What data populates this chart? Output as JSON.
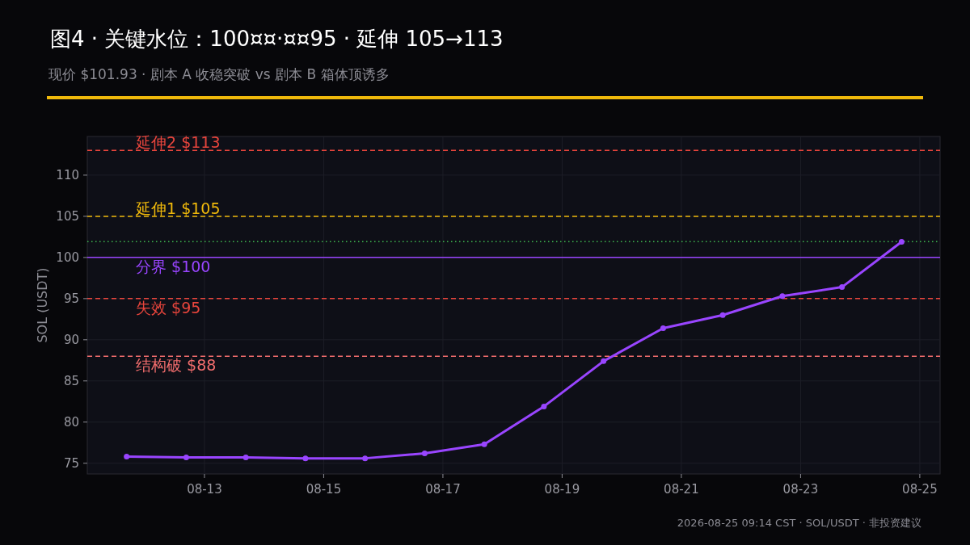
{
  "chart_data": {
    "type": "line",
    "title": "图4 · 关键水位：100¤¤·¤¤95 · 延伸 105→113",
    "subtitle": "现价 $101.93 · 剧本 A 收稳突破 vs 剧本 B 箱体顶诱多",
    "ylabel": "SOL (USDT)",
    "annotations": [
      "2026-08-25 09:14 CST · SOL/USDT · 非投资建议"
    ],
    "x": [
      "2026-08-11T16:40",
      "2026-08-12T16:40",
      "2026-08-13T16:40",
      "2026-08-14T16:40",
      "2026-08-15T16:40",
      "2026-08-16T16:40",
      "2026-08-17T16:40",
      "2026-08-18T16:40",
      "2026-08-19T16:40",
      "2026-08-20T16:40",
      "2026-08-21T16:40",
      "2026-08-22T16:40",
      "2026-08-23T16:40",
      "2026-08-24T16:40"
    ],
    "series": [
      {
        "color": "#9945ff",
        "values": [
          75.8,
          75.7,
          75.7,
          75.6,
          75.6,
          76.2,
          77.3,
          81.9,
          87.4,
          91.4,
          93.0,
          95.3,
          96.4,
          101.9
        ]
      }
    ],
    "xlim": [
      "2026-08-11T00:50",
      "2026-08-25T08:10"
    ],
    "xticks": [
      {
        "value": "2026-08-13",
        "label": "08-13"
      },
      {
        "value": "2026-08-15",
        "label": "08-15"
      },
      {
        "value": "2026-08-17",
        "label": "08-17"
      },
      {
        "value": "2026-08-19",
        "label": "08-19"
      },
      {
        "value": "2026-08-21",
        "label": "08-21"
      },
      {
        "value": "2026-08-23",
        "label": "08-23"
      },
      {
        "value": "2026-08-25",
        "label": "08-25"
      }
    ],
    "ylim": [
      73.7,
      114.7
    ],
    "yticks": [
      75,
      80,
      85,
      90,
      95,
      100,
      105,
      110
    ],
    "ref_lines": [
      {
        "axis": "y",
        "value": 113,
        "label": "延伸2 $113",
        "color": "#e8453c",
        "line_style": "dashed"
      },
      {
        "axis": "y",
        "value": 105,
        "label": "延伸1 $105",
        "color": "#f0b90b",
        "line_style": "dashed"
      },
      {
        "axis": "y",
        "value": 101.93,
        "color": "#3fb950",
        "line_style": "dotted"
      },
      {
        "axis": "y",
        "value": 100,
        "label": "分界 $100",
        "color": "#9945ff",
        "line_style": "solid"
      },
      {
        "axis": "y",
        "value": 95,
        "label": "失效 $95",
        "color": "#e8453c",
        "line_style": "dashed"
      },
      {
        "axis": "y",
        "value": 88,
        "label": "结构破 $88",
        "color": "#f26d6d",
        "line_style": "dashed"
      }
    ],
    "grid": true,
    "marker": "circle",
    "line_style": "solid"
  }
}
